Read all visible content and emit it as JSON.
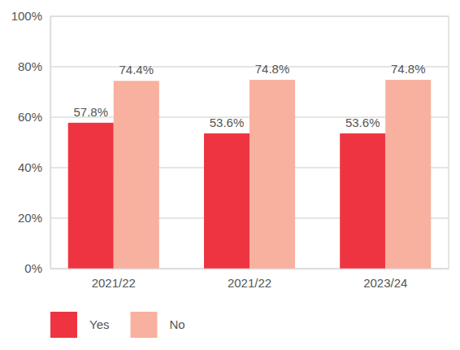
{
  "chart_data": {
    "type": "bar",
    "categories": [
      "2021/22",
      "2021/22",
      "2023/24"
    ],
    "series": [
      {
        "name": "Yes",
        "color": "#ee3440",
        "values": [
          57.8,
          53.6,
          53.6
        ],
        "value_labels": [
          "57.8%",
          "53.6%",
          "53.6%"
        ]
      },
      {
        "name": "No",
        "color": "#f8b09f",
        "values": [
          74.4,
          74.8,
          74.8
        ],
        "value_labels": [
          "74.4%",
          "74.8%",
          "74.8%"
        ]
      }
    ],
    "ylim": [
      0,
      100
    ],
    "yticks": [
      {
        "value": 0,
        "label": "0%"
      },
      {
        "value": 20,
        "label": "20%"
      },
      {
        "value": 40,
        "label": "40%"
      },
      {
        "value": 60,
        "label": "60%"
      },
      {
        "value": 80,
        "label": "80%"
      },
      {
        "value": 100,
        "label": "100%"
      }
    ],
    "grid": true,
    "data_labels": true,
    "legend": "bottom-left"
  }
}
